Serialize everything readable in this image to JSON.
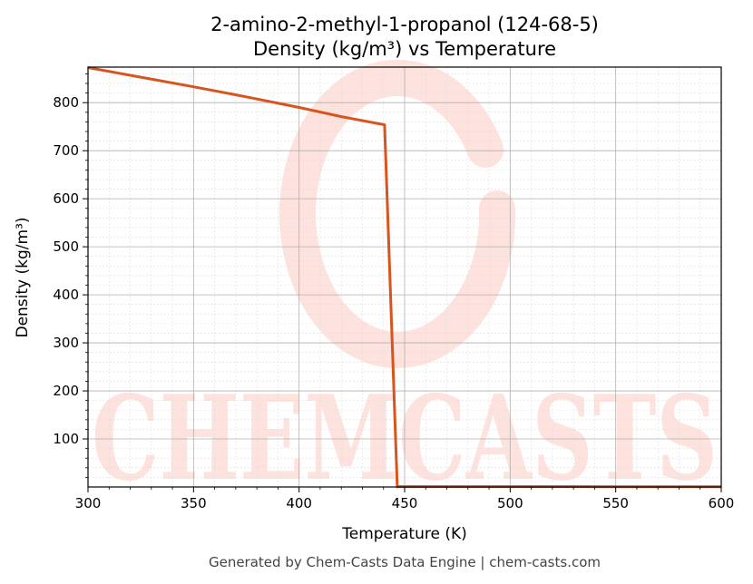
{
  "chart_data": {
    "type": "line",
    "title": "2-amino-2-methyl-1-propanol (124-68-5)",
    "subtitle": "Density (kg/m³) vs Temperature",
    "xlabel": "Temperature (K)",
    "ylabel": "Density (kg/m³)",
    "xlim": [
      300,
      600
    ],
    "ylim": [
      0,
      874
    ],
    "x_ticks": [
      300,
      350,
      400,
      450,
      500,
      550,
      600
    ],
    "y_ticks": [
      100,
      200,
      300,
      400,
      500,
      600,
      700,
      800
    ],
    "grid": true,
    "series": [
      {
        "x": [
          300,
          325,
          350,
          375,
          400,
          420,
          440.5,
          446.5,
          447,
          500,
          550,
          600
        ],
        "y": [
          873,
          853,
          833,
          812,
          790,
          771,
          754,
          0,
          0.8,
          0.7,
          0.65,
          0.6
        ]
      }
    ],
    "colors": {
      "line": "#d9531e",
      "grid_major": "#b0b0b0",
      "grid_minor": "#dedede",
      "watermark": "#fde2dd"
    }
  },
  "watermark": {
    "text": "CHEMCASTS"
  },
  "footer": "Generated by Chem-Casts Data Engine | chem-casts.com"
}
